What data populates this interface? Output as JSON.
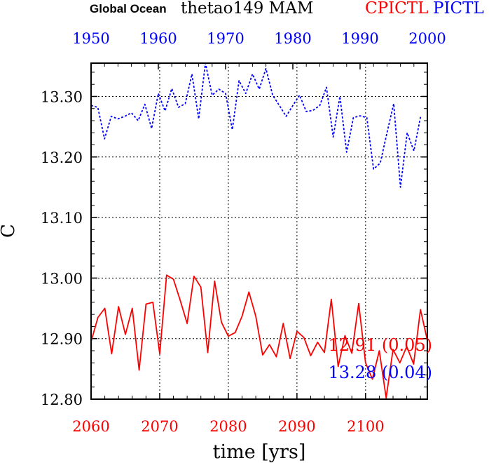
{
  "chart_data": {
    "type": "line",
    "title": {
      "prefix": "Global Ocean",
      "main": "thetao149 MAM",
      "label_red": "CPICTL",
      "label_blue": "PICTL"
    },
    "xlabel": "time [yrs]",
    "ylabel": "C",
    "bottom_axis": {
      "range": [
        2060,
        2109
      ],
      "ticks": [
        "2060",
        "2070",
        "2080",
        "2090",
        "2100"
      ],
      "color": "#ff0000"
    },
    "top_axis": {
      "range": [
        1950,
        2000
      ],
      "ticks": [
        "1950",
        "1960",
        "1970",
        "1980",
        "1990",
        "2000"
      ],
      "color": "#0000ff"
    },
    "yaxis": {
      "range": [
        12.8,
        13.355
      ],
      "ticks": [
        "12.80",
        "12.90",
        "13.00",
        "13.10",
        "13.20",
        "13.30"
      ]
    },
    "grid": true,
    "series": [
      {
        "name": "CPICTL",
        "axis": "bottom",
        "color": "#ff0000",
        "style": "solid",
        "x_start": 2060,
        "values": [
          12.895,
          12.935,
          12.95,
          12.875,
          12.953,
          12.907,
          12.95,
          12.848,
          12.957,
          12.96,
          12.875,
          13.005,
          12.998,
          12.963,
          12.925,
          13.003,
          12.985,
          12.877,
          12.995,
          12.927,
          12.904,
          12.91,
          12.937,
          12.977,
          12.937,
          12.873,
          12.89,
          12.87,
          12.925,
          12.867,
          12.912,
          12.902,
          12.872,
          12.894,
          12.877,
          12.965,
          12.854,
          12.905,
          12.876,
          12.958,
          12.86,
          12.833,
          12.88,
          12.802,
          12.882,
          12.86,
          12.887,
          12.858,
          12.948,
          12.897
        ]
      },
      {
        "name": "PICTL",
        "axis": "top",
        "color": "#0000ff",
        "style": "dotted",
        "x_start": 1950,
        "values": [
          13.285,
          13.282,
          13.23,
          13.267,
          13.263,
          13.267,
          13.273,
          13.26,
          13.287,
          13.247,
          13.305,
          13.276,
          13.313,
          13.282,
          13.288,
          13.337,
          13.263,
          13.355,
          13.302,
          13.312,
          13.305,
          13.245,
          13.326,
          13.305,
          13.337,
          13.312,
          13.346,
          13.302,
          13.285,
          13.267,
          13.285,
          13.302,
          13.275,
          13.277,
          13.285,
          13.315,
          13.233,
          13.3,
          13.208,
          13.265,
          13.268,
          13.265,
          13.18,
          13.19,
          13.24,
          13.288,
          13.15,
          13.24,
          13.21,
          13.267
        ]
      }
    ],
    "annotations": [
      {
        "text": "12.91 (0.05)",
        "color": "#ff0000"
      },
      {
        "text": "13.28 (0.04)",
        "color": "#0000ff"
      }
    ]
  }
}
